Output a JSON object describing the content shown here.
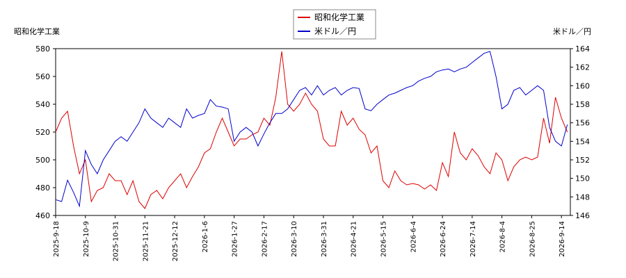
{
  "chart_data": {
    "type": "line",
    "y_label": "昭和化学工業",
    "y2_label": "米ドル／円",
    "categories": [
      "2025-9-18",
      null,
      null,
      null,
      null,
      "2025-10-9",
      null,
      null,
      null,
      null,
      "2025-10-31",
      null,
      null,
      null,
      null,
      "2025-11-21",
      null,
      null,
      null,
      null,
      "2025-12-12",
      null,
      null,
      null,
      null,
      "2026-1-6",
      null,
      null,
      null,
      null,
      "2026-1-27",
      null,
      null,
      null,
      null,
      "2026-2-17",
      null,
      null,
      null,
      null,
      "2026-3-10",
      null,
      null,
      null,
      null,
      "2026-3-31",
      null,
      null,
      null,
      null,
      "2026-4-21",
      null,
      null,
      null,
      null,
      "2026-5-15",
      null,
      null,
      null,
      null,
      "2026-6-4",
      null,
      null,
      null,
      null,
      "2026-6-24",
      null,
      null,
      null,
      null,
      "2026-7-14",
      null,
      null,
      null,
      null,
      "2026-8-4",
      null,
      null,
      null,
      null,
      "2026-8-25",
      null,
      null,
      null,
      null,
      "2026-9-14",
      null
    ],
    "series": [
      {
        "name": "昭和化学工業",
        "color": "#dd0000",
        "axis": "y",
        "values": [
          520,
          530,
          535,
          510,
          490,
          500,
          470,
          478,
          480,
          490,
          485,
          485,
          475,
          485,
          470,
          465,
          475,
          478,
          472,
          480,
          485,
          490,
          480,
          488,
          495,
          505,
          508,
          520,
          530,
          520,
          510,
          515,
          515,
          518,
          520,
          530,
          525,
          545,
          578,
          540,
          535,
          540,
          548,
          540,
          535,
          515,
          510,
          510,
          535,
          525,
          530,
          522,
          518,
          505,
          510,
          485,
          480,
          492,
          485,
          482,
          483,
          482,
          479,
          482,
          478,
          498,
          488,
          520,
          505,
          500,
          508,
          503,
          495,
          490,
          505,
          500,
          485,
          495,
          500,
          502,
          500,
          502,
          530,
          512,
          545,
          530,
          520
        ]
      },
      {
        "name": "米ドル／円",
        "color": "#0000cc",
        "axis": "y2",
        "values": [
          147.7,
          147.5,
          149.8,
          148.5,
          147,
          153,
          151.5,
          150.5,
          152,
          153,
          154,
          154.5,
          154,
          155,
          156,
          157.5,
          156.5,
          156,
          155.5,
          156.5,
          156,
          155.5,
          157.5,
          156.5,
          156.8,
          157,
          158.5,
          157.8,
          157.7,
          157.5,
          154,
          155,
          155.5,
          155,
          153.5,
          154.8,
          156,
          157,
          157,
          157.5,
          158.5,
          159.5,
          159.8,
          159,
          160,
          159,
          159.5,
          159.8,
          159,
          159.5,
          159.8,
          159.7,
          157.5,
          157.3,
          158,
          158.5,
          159,
          159.2,
          159.5,
          159.8,
          160,
          160.5,
          160.8,
          161,
          161.5,
          161.7,
          161.8,
          161.5,
          161.8,
          162,
          162.5,
          163,
          163.5,
          163.7,
          161,
          157.5,
          158,
          159.5,
          159.8,
          159,
          159.5,
          160,
          159.5,
          155.5,
          154,
          153.5,
          155.8
        ]
      }
    ],
    "ylim": [
      460,
      580
    ],
    "yticks": [
      460,
      480,
      500,
      520,
      540,
      560,
      580
    ],
    "y2lim": [
      146,
      164
    ],
    "y2ticks": [
      146,
      148,
      150,
      152,
      154,
      156,
      158,
      160,
      162,
      164
    ],
    "legend": "top"
  }
}
